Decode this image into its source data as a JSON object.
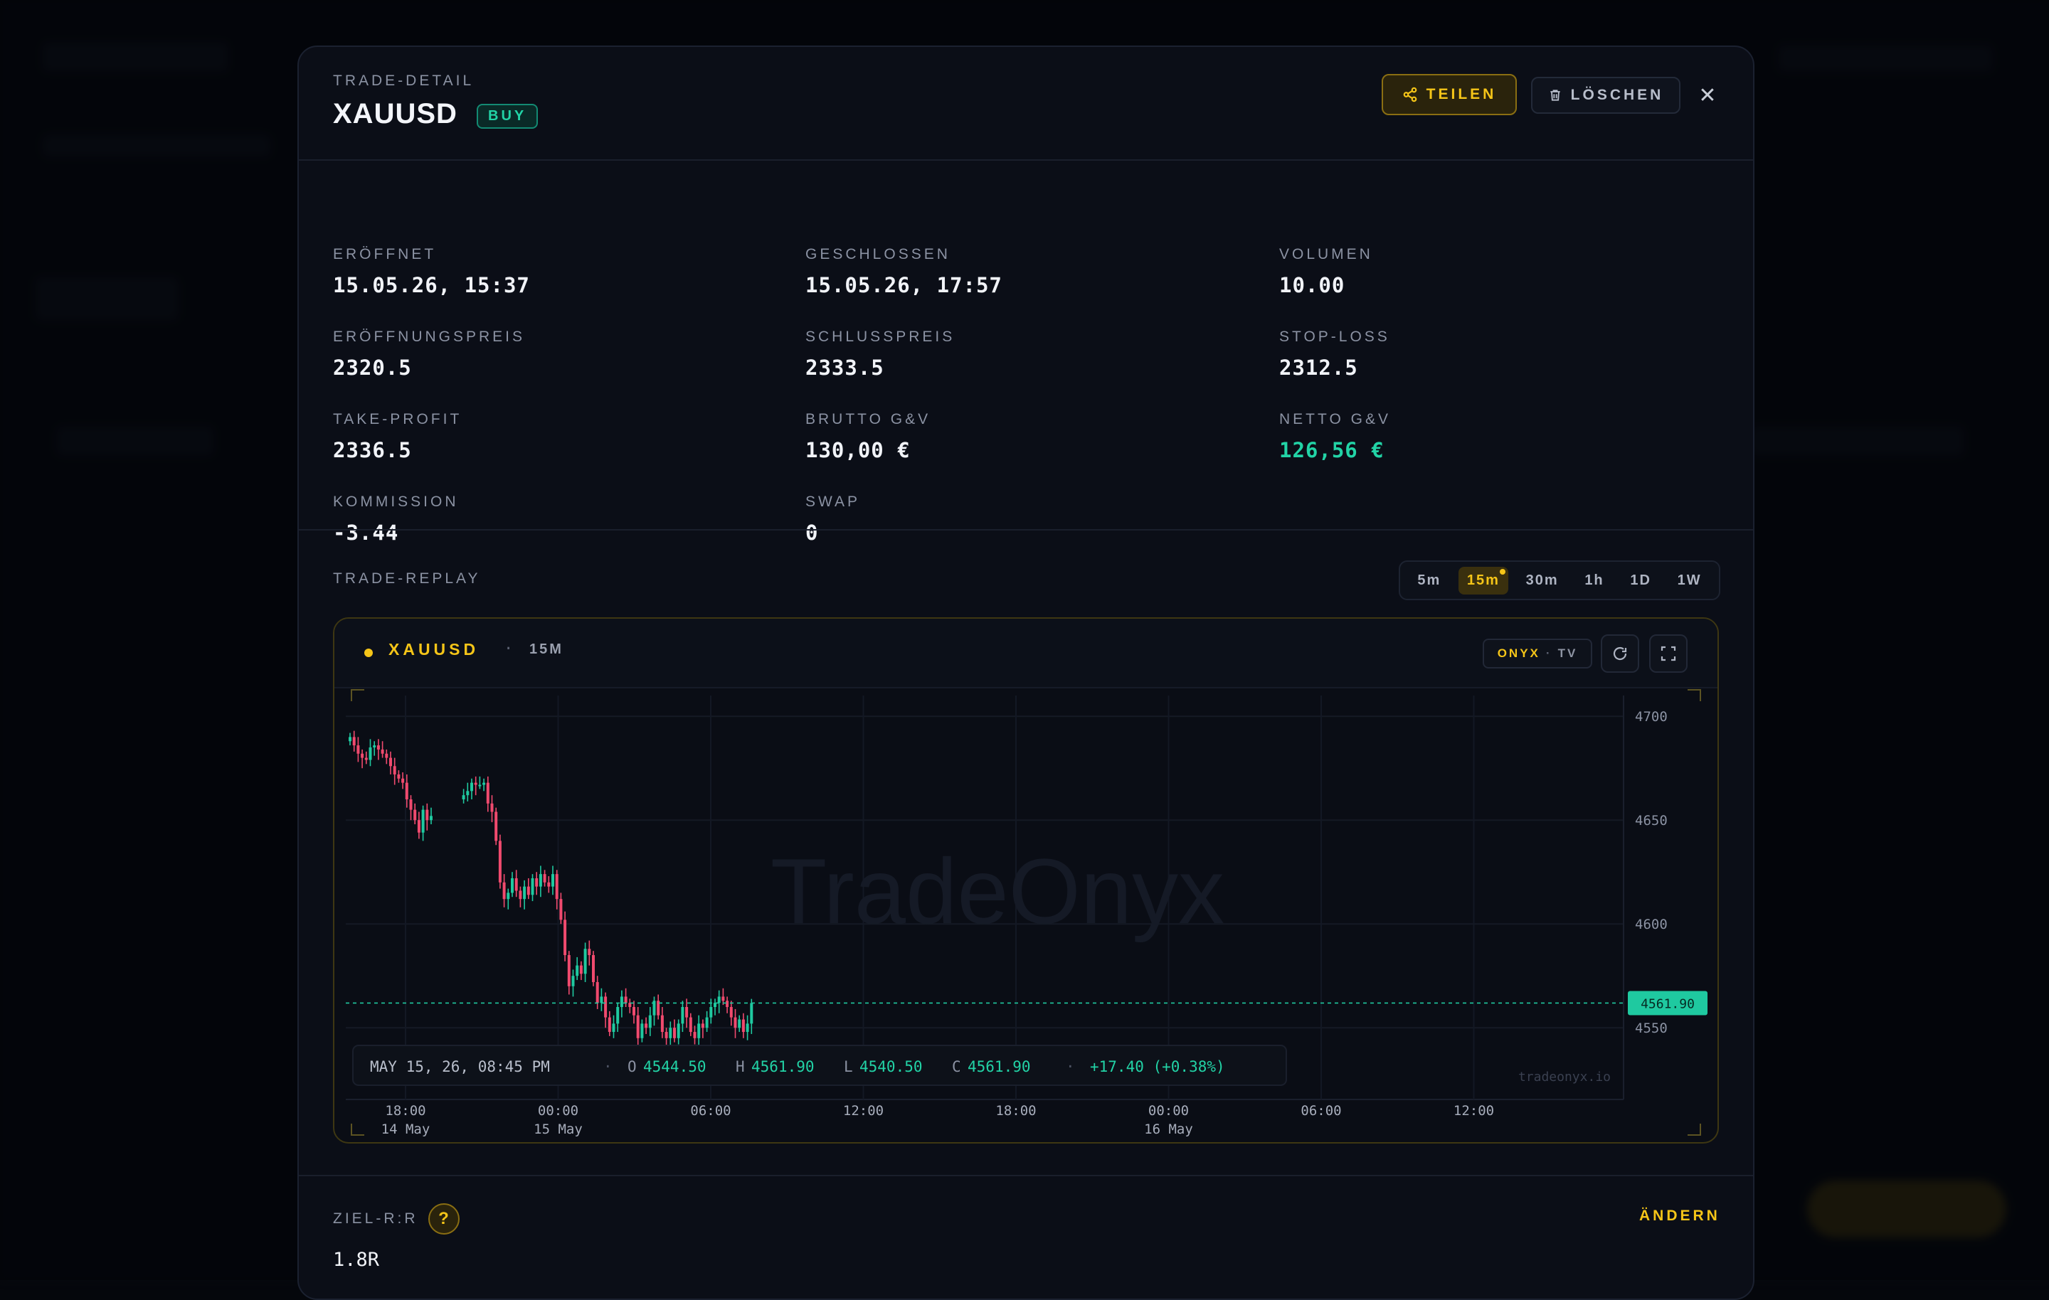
{
  "modal": {
    "eyebrow": "TRADE-DETAIL",
    "symbol": "XAUUSD",
    "side": "BUY",
    "share_label": "TEILEN",
    "delete_label": "LÖSCHEN"
  },
  "stats": [
    {
      "label": "ERÖFFNET",
      "value": "15.05.26, 15:37"
    },
    {
      "label": "GESCHLOSSEN",
      "value": "15.05.26, 17:57"
    },
    {
      "label": "VOLUMEN",
      "value": "10.00"
    },
    {
      "label": "ERÖFFNUNGSPREIS",
      "value": "2320.5"
    },
    {
      "label": "SCHLUSSPREIS",
      "value": "2333.5"
    },
    {
      "label": "STOP-LOSS",
      "value": "2312.5"
    },
    {
      "label": "TAKE-PROFIT",
      "value": "2336.5"
    },
    {
      "label": "BRUTTO G&V",
      "value": "130,00 €"
    },
    {
      "label": "NETTO G&V",
      "value": "126,56 €",
      "tone": "positive"
    },
    {
      "label": "KOMMISSION",
      "value": "-3.44"
    },
    {
      "label": "SWAP",
      "value": "0"
    }
  ],
  "replay": {
    "title": "TRADE-REPLAY",
    "timeframes": [
      "5m",
      "15m",
      "30m",
      "1h",
      "1D",
      "1W"
    ],
    "active_timeframe": "15m"
  },
  "chart_header": {
    "symbol": "XAUUSD",
    "sep": "·",
    "timeframe": "15M",
    "brand": "ONYX",
    "brand_sep": "·",
    "brand_suffix": "TV"
  },
  "chart_data": {
    "type": "candlestick",
    "watermark": "TradeOnyx",
    "attribution": "tradeonyx.io",
    "y_ticks": [
      "4700",
      "4650",
      "4600",
      "4550"
    ],
    "ylim": [
      4510,
      4710
    ],
    "x_ticks": [
      {
        "top": "18:00",
        "bottom": "14 May"
      },
      {
        "top": "00:00",
        "bottom": "15 May"
      },
      {
        "top": "06:00",
        "bottom": ""
      },
      {
        "top": "12:00",
        "bottom": ""
      },
      {
        "top": "18:00",
        "bottom": ""
      },
      {
        "top": "00:00",
        "bottom": "16 May"
      },
      {
        "top": "06:00",
        "bottom": ""
      },
      {
        "top": "12:00",
        "bottom": ""
      }
    ],
    "last_price": "4561.90",
    "last_value": 4561.9,
    "close_path": [
      4690,
      4686,
      4682,
      4680,
      4679,
      4685,
      4686,
      4684,
      4682,
      4680,
      4676,
      4672,
      4670,
      4668,
      4660,
      4655,
      4650,
      4644,
      4655,
      4650,
      4652,
      null,
      null,
      null,
      null,
      null,
      null,
      null,
      4662,
      4664,
      4668,
      4667,
      4667,
      4668,
      4658,
      4654,
      4640,
      4620,
      4612,
      4615,
      4622,
      4616,
      4612,
      4618,
      4614,
      4622,
      4618,
      4624,
      4620,
      4618,
      4624,
      4612,
      4602,
      4585,
      4570,
      4575,
      4580,
      4576,
      4588,
      4585,
      4572,
      4562,
      4565,
      4555,
      4548,
      4552,
      4560,
      4565,
      4562,
      4560,
      4556,
      4545,
      4552,
      4550,
      4556,
      4563,
      4556,
      4548,
      4545,
      4550,
      4545,
      4552,
      4560,
      4555,
      4548,
      4545,
      4552,
      4550,
      4555,
      4560,
      4562,
      4565,
      4563,
      4560,
      4555,
      4550,
      4554,
      4548,
      4552,
      4561.9
    ],
    "ohlc_bar": {
      "date": "MAY 15, 26, 08:45 PM",
      "o_label": "O",
      "o": "4544.50",
      "h_label": "H",
      "h": "4561.90",
      "l_label": "L",
      "l": "4540.50",
      "c_label": "C",
      "c": "4561.90",
      "sep": "·",
      "change": "+17.40 (+0.38%)"
    },
    "colors": {
      "up": "#1fc9a0",
      "down": "#f04a6e",
      "accent": "#f5c518"
    }
  },
  "target_rr": {
    "label": "ZIEL-R:R",
    "help": "?",
    "value": "1.8R",
    "change_label": "ÄNDERN"
  }
}
